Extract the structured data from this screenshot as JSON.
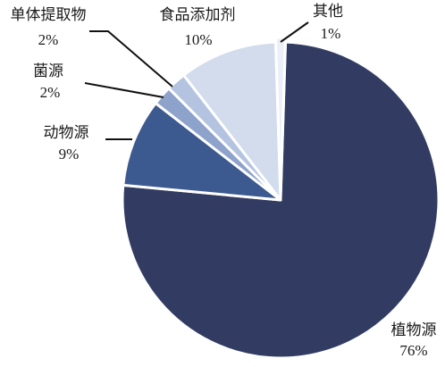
{
  "chart_data": {
    "type": "pie",
    "title": "",
    "slices": [
      {
        "name": "植物源",
        "value": 76,
        "label": "76%",
        "color": "#323c62"
      },
      {
        "name": "动物源",
        "value": 9,
        "label": "9%",
        "color": "#3c5a90"
      },
      {
        "name": "菌源",
        "value": 2,
        "label": "2%",
        "color": "#8ea3cc"
      },
      {
        "name": "单体提取物",
        "value": 2,
        "label": "2%",
        "color": "#b4c3e0"
      },
      {
        "name": "食品添加剂",
        "value": 10,
        "label": "10%",
        "color": "#d2dced"
      },
      {
        "name": "其他",
        "value": 1,
        "label": "1%",
        "color": "#ebeff7"
      }
    ],
    "legend": "none",
    "start_angle_deg_from_north": 1.8,
    "direction": "clockwise"
  }
}
